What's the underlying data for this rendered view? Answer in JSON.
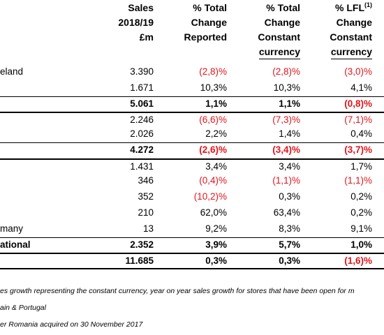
{
  "headers": {
    "sales": [
      "Sales",
      "2018/19",
      "£m"
    ],
    "pct_total_reported": [
      "% Total",
      "Change",
      "Reported"
    ],
    "pct_total_constant": [
      "% Total",
      "Change",
      "Constant",
      "currency"
    ],
    "lfl": [
      "% LFL",
      "(1)",
      "Change",
      "Constant",
      "currency"
    ]
  },
  "rows": [
    {
      "label": "eland",
      "sales": "3.390",
      "reported": "(2,8)%",
      "constant": "(2,8)%",
      "lfl": "(3,0)%",
      "neg": [
        true,
        true,
        true
      ],
      "bold": false
    },
    {
      "label": "",
      "sales": "1.671",
      "reported": "10,3%",
      "constant": "10,3%",
      "lfl": "4,1%",
      "neg": [
        false,
        false,
        false
      ],
      "bold": false
    },
    {
      "label": "",
      "sales": "5.061",
      "reported": "1,1%",
      "constant": "1,1%",
      "lfl": "(0,8)%",
      "neg": [
        false,
        false,
        true
      ],
      "bold": true
    },
    {
      "label": "",
      "sales": "2.246",
      "reported": "(6,6)%",
      "constant": "(7,3)%",
      "lfl": "(7,1)%",
      "neg": [
        true,
        true,
        true
      ],
      "bold": false
    },
    {
      "label": "",
      "sales": "2.026",
      "reported": "2,2%",
      "constant": "1,4%",
      "lfl": "0,4%",
      "neg": [
        false,
        false,
        false
      ],
      "bold": false
    },
    {
      "label": "",
      "sales": "4.272",
      "reported": "(2,6)%",
      "constant": "(3,4)%",
      "lfl": "(3,7)%",
      "neg": [
        true,
        true,
        true
      ],
      "bold": true
    },
    {
      "label": "",
      "sales": "1.431",
      "reported": "3,4%",
      "constant": "3,4%",
      "lfl": "1,7%",
      "neg": [
        false,
        false,
        false
      ],
      "bold": false
    },
    {
      "label": "",
      "sales": "346",
      "reported": "(0,4)%",
      "constant": "(1,1)%",
      "lfl": "(1,1)%",
      "neg": [
        true,
        true,
        true
      ],
      "bold": false
    },
    {
      "label": "",
      "sales": "352",
      "reported": "(10,2)%",
      "constant": "0,3%",
      "lfl": "0,2%",
      "neg": [
        true,
        false,
        false
      ],
      "bold": false
    },
    {
      "label": "",
      "sales": "210",
      "reported": "62,0%",
      "constant": "63,4%",
      "lfl": "0,2%",
      "neg": [
        false,
        false,
        false
      ],
      "bold": false
    },
    {
      "label": "many",
      "sales": "13",
      "reported": "9,2%",
      "constant": "8,3%",
      "lfl": "9,1%",
      "neg": [
        false,
        false,
        false
      ],
      "bold": false
    },
    {
      "label": "ational",
      "sales": "2.352",
      "reported": "3,9%",
      "constant": "5,7%",
      "lfl": "1,0%",
      "neg": [
        false,
        false,
        false
      ],
      "bold": true
    },
    {
      "label": "",
      "sales": "11.685",
      "reported": "0,3%",
      "constant": "0,3%",
      "lfl": "(1,6)%",
      "neg": [
        false,
        false,
        true
      ],
      "bold": true
    }
  ],
  "notes": [
    "es growth representing the constant currency, year on year sales growth for stores that have been open for m",
    "ain & Portugal",
    "er Romania acquired on 30 November 2017"
  ]
}
